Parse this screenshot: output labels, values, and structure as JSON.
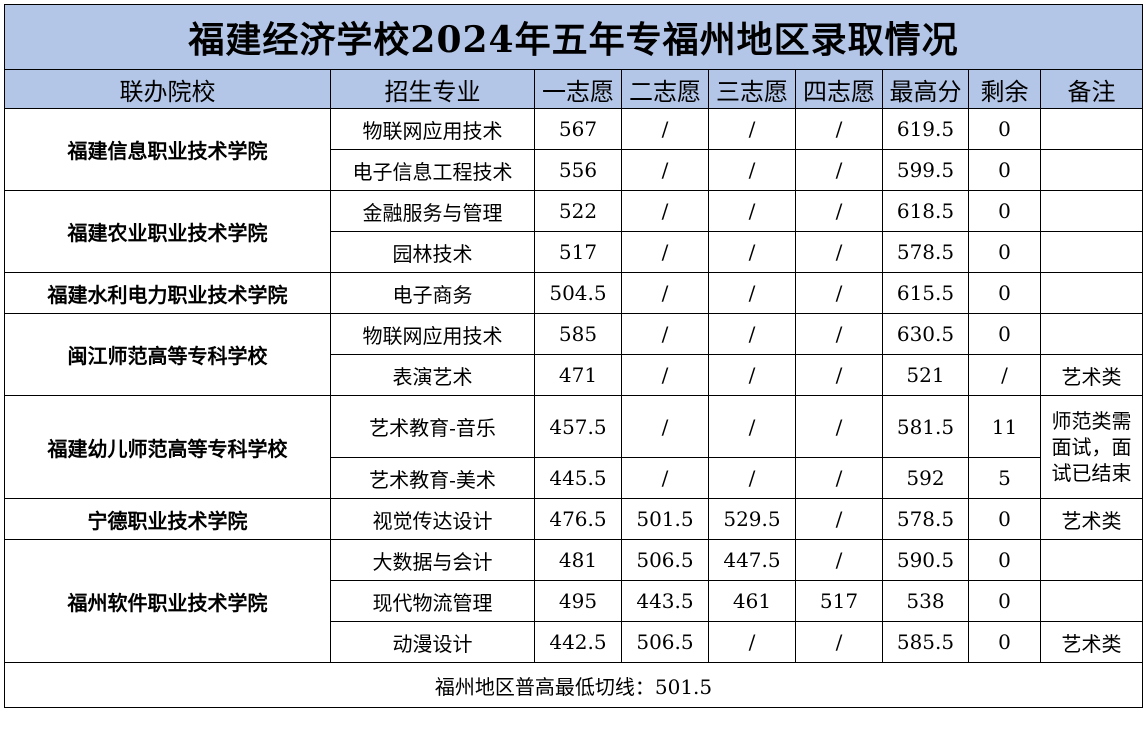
{
  "title": "福建经济学校2024年五年专福州地区录取情况",
  "headers": {
    "college": "联办院校",
    "major": "招生专业",
    "c1": "一志愿",
    "c2": "二志愿",
    "c3": "三志愿",
    "c4": "四志愿",
    "max": "最高分",
    "remain": "剩余",
    "remark": "备注"
  },
  "colleges": [
    "福建信息职业技术学院",
    "福建农业职业技术学院",
    "福建水利电力职业技术学院",
    "闽江师范高等专科学校",
    "福建幼儿师范高等专科学校",
    "宁德职业技术学院",
    "福州软件职业技术学院"
  ],
  "rows": [
    {
      "major": "物联网应用技术",
      "c1": "567",
      "c2": "/",
      "c3": "/",
      "c4": "/",
      "max": "619.5",
      "remain": "0",
      "remark": ""
    },
    {
      "major": "电子信息工程技术",
      "c1": "556",
      "c2": "/",
      "c3": "/",
      "c4": "/",
      "max": "599.5",
      "remain": "0",
      "remark": ""
    },
    {
      "major": "金融服务与管理",
      "c1": "522",
      "c2": "/",
      "c3": "/",
      "c4": "/",
      "max": "618.5",
      "remain": "0",
      "remark": ""
    },
    {
      "major": "园林技术",
      "c1": "517",
      "c2": "/",
      "c3": "/",
      "c4": "/",
      "max": "578.5",
      "remain": "0",
      "remark": ""
    },
    {
      "major": "电子商务",
      "c1": "504.5",
      "c2": "/",
      "c3": "/",
      "c4": "/",
      "max": "615.5",
      "remain": "0",
      "remark": ""
    },
    {
      "major": "物联网应用技术",
      "c1": "585",
      "c2": "/",
      "c3": "/",
      "c4": "/",
      "max": "630.5",
      "remain": "0",
      "remark": ""
    },
    {
      "major": "表演艺术",
      "c1": "471",
      "c2": "/",
      "c3": "/",
      "c4": "/",
      "max": "521",
      "remain": "/",
      "remark": "艺术类"
    },
    {
      "major": "艺术教育-音乐",
      "c1": "457.5",
      "c2": "/",
      "c3": "/",
      "c4": "/",
      "max": "581.5",
      "remain": "11",
      "remark": "师范类需面试，面试已结束"
    },
    {
      "major": "艺术教育-美术",
      "c1": "445.5",
      "c2": "/",
      "c3": "/",
      "c4": "/",
      "max": "592",
      "remain": "5",
      "remark": ""
    },
    {
      "major": "视觉传达设计",
      "c1": "476.5",
      "c2": "501.5",
      "c3": "529.5",
      "c4": "/",
      "max": "578.5",
      "remain": "0",
      "remark": "艺术类"
    },
    {
      "major": "大数据与会计",
      "c1": "481",
      "c2": "506.5",
      "c3": "447.5",
      "c4": "/",
      "max": "590.5",
      "remain": "0",
      "remark": ""
    },
    {
      "major": "现代物流管理",
      "c1": "495",
      "c2": "443.5",
      "c3": "461",
      "c4": "517",
      "max": "538",
      "remain": "0",
      "remark": ""
    },
    {
      "major": "动漫设计",
      "c1": "442.5",
      "c2": "506.5",
      "c3": "/",
      "c4": "/",
      "max": "585.5",
      "remain": "0",
      "remark": "艺术类"
    }
  ],
  "footer": "福州地区普高最低切线：501.5",
  "colors": {
    "header_bg": "#b4c6e7",
    "border": "#000000"
  }
}
